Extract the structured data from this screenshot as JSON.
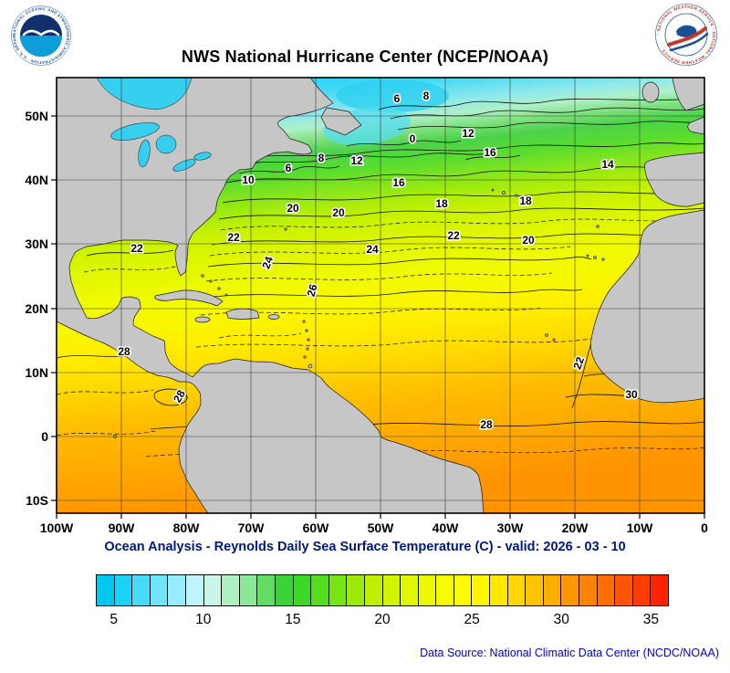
{
  "header": {
    "title": "NWS National Hurricane Center (NCEP/NOAA)",
    "noaa_logo": {
      "ring_text": "NATIONAL OCEANIC AND ATMOSPHERIC ADMINISTRATION · U.S. DEPARTMENT OF COMMERCE ·"
    },
    "nws_logo": {
      "ring_text": "· NATIONAL WEATHER SERVICE · NATIONAL WEATHER SERVICE"
    }
  },
  "map": {
    "lat_labels": [
      "50N",
      "40N",
      "30N",
      "20N",
      "10N",
      "0",
      "10S"
    ],
    "lon_labels": [
      "100W",
      "90W",
      "80W",
      "70W",
      "60W",
      "50W",
      "40W",
      "30W",
      "20W",
      "10W",
      "0"
    ],
    "contour_labels": [
      "6",
      "8",
      "12",
      "0",
      "10",
      "6",
      "8",
      "12",
      "16",
      "16",
      "14",
      "18",
      "18",
      "20",
      "20",
      "22",
      "20",
      "22",
      "22",
      "24",
      "24",
      "26",
      "28",
      "28",
      "22",
      "30",
      "28"
    ],
    "land_color": "#C6C6C6",
    "cold_water_color": "#37CFF0"
  },
  "subtitle": "Ocean Analysis - Reynolds Daily Sea Surface Temperature (C) - valid: 2026 - 03 - 10",
  "colorbar": {
    "min": 4,
    "max": 36,
    "tick_labels": [
      "5",
      "10",
      "15",
      "20",
      "25",
      "30",
      "35"
    ],
    "colors": [
      "#00C6F0",
      "#1ED0F4",
      "#46DAF6",
      "#6EE4F8",
      "#96ECFA",
      "#BEF4FB",
      "#C9F6E9",
      "#AEF0C0",
      "#8CE898",
      "#62DC62",
      "#3CD23C",
      "#3CD728",
      "#55DE1E",
      "#78E414",
      "#9BEA0A",
      "#BEF000",
      "#D2F400",
      "#E1F700",
      "#EDF900",
      "#F6FB00",
      "#FDFD00",
      "#FFF600",
      "#FFE800",
      "#FFD700",
      "#FFC300",
      "#FFAE00",
      "#FF9800",
      "#FF8200",
      "#FF6C00",
      "#FF5500",
      "#FF3D00",
      "#FF2400"
    ]
  },
  "footer": {
    "source": "Data Source: National Climatic Data Center (NCDC/NOAA)"
  },
  "chart_data": {
    "type": "heatmap",
    "title": "Ocean Analysis - Reynolds Daily Sea Surface Temperature (C)",
    "valid_date": "2026 - 03 - 10",
    "units": "C",
    "x_axis_ticks": [
      "100W",
      "90W",
      "80W",
      "70W",
      "60W",
      "50W",
      "40W",
      "30W",
      "20W",
      "10W",
      "0"
    ],
    "y_axis_ticks": [
      "50N",
      "40N",
      "30N",
      "20N",
      "10N",
      "0",
      "10S"
    ],
    "colorbar_ticks": [
      5,
      10,
      15,
      20,
      25,
      30,
      35
    ],
    "colorbar_range": [
      4,
      36
    ],
    "labeled_contour_values": [
      0,
      6,
      8,
      10,
      12,
      14,
      16,
      18,
      20,
      22,
      24,
      26,
      28,
      30
    ],
    "legend_position": "bottom"
  }
}
